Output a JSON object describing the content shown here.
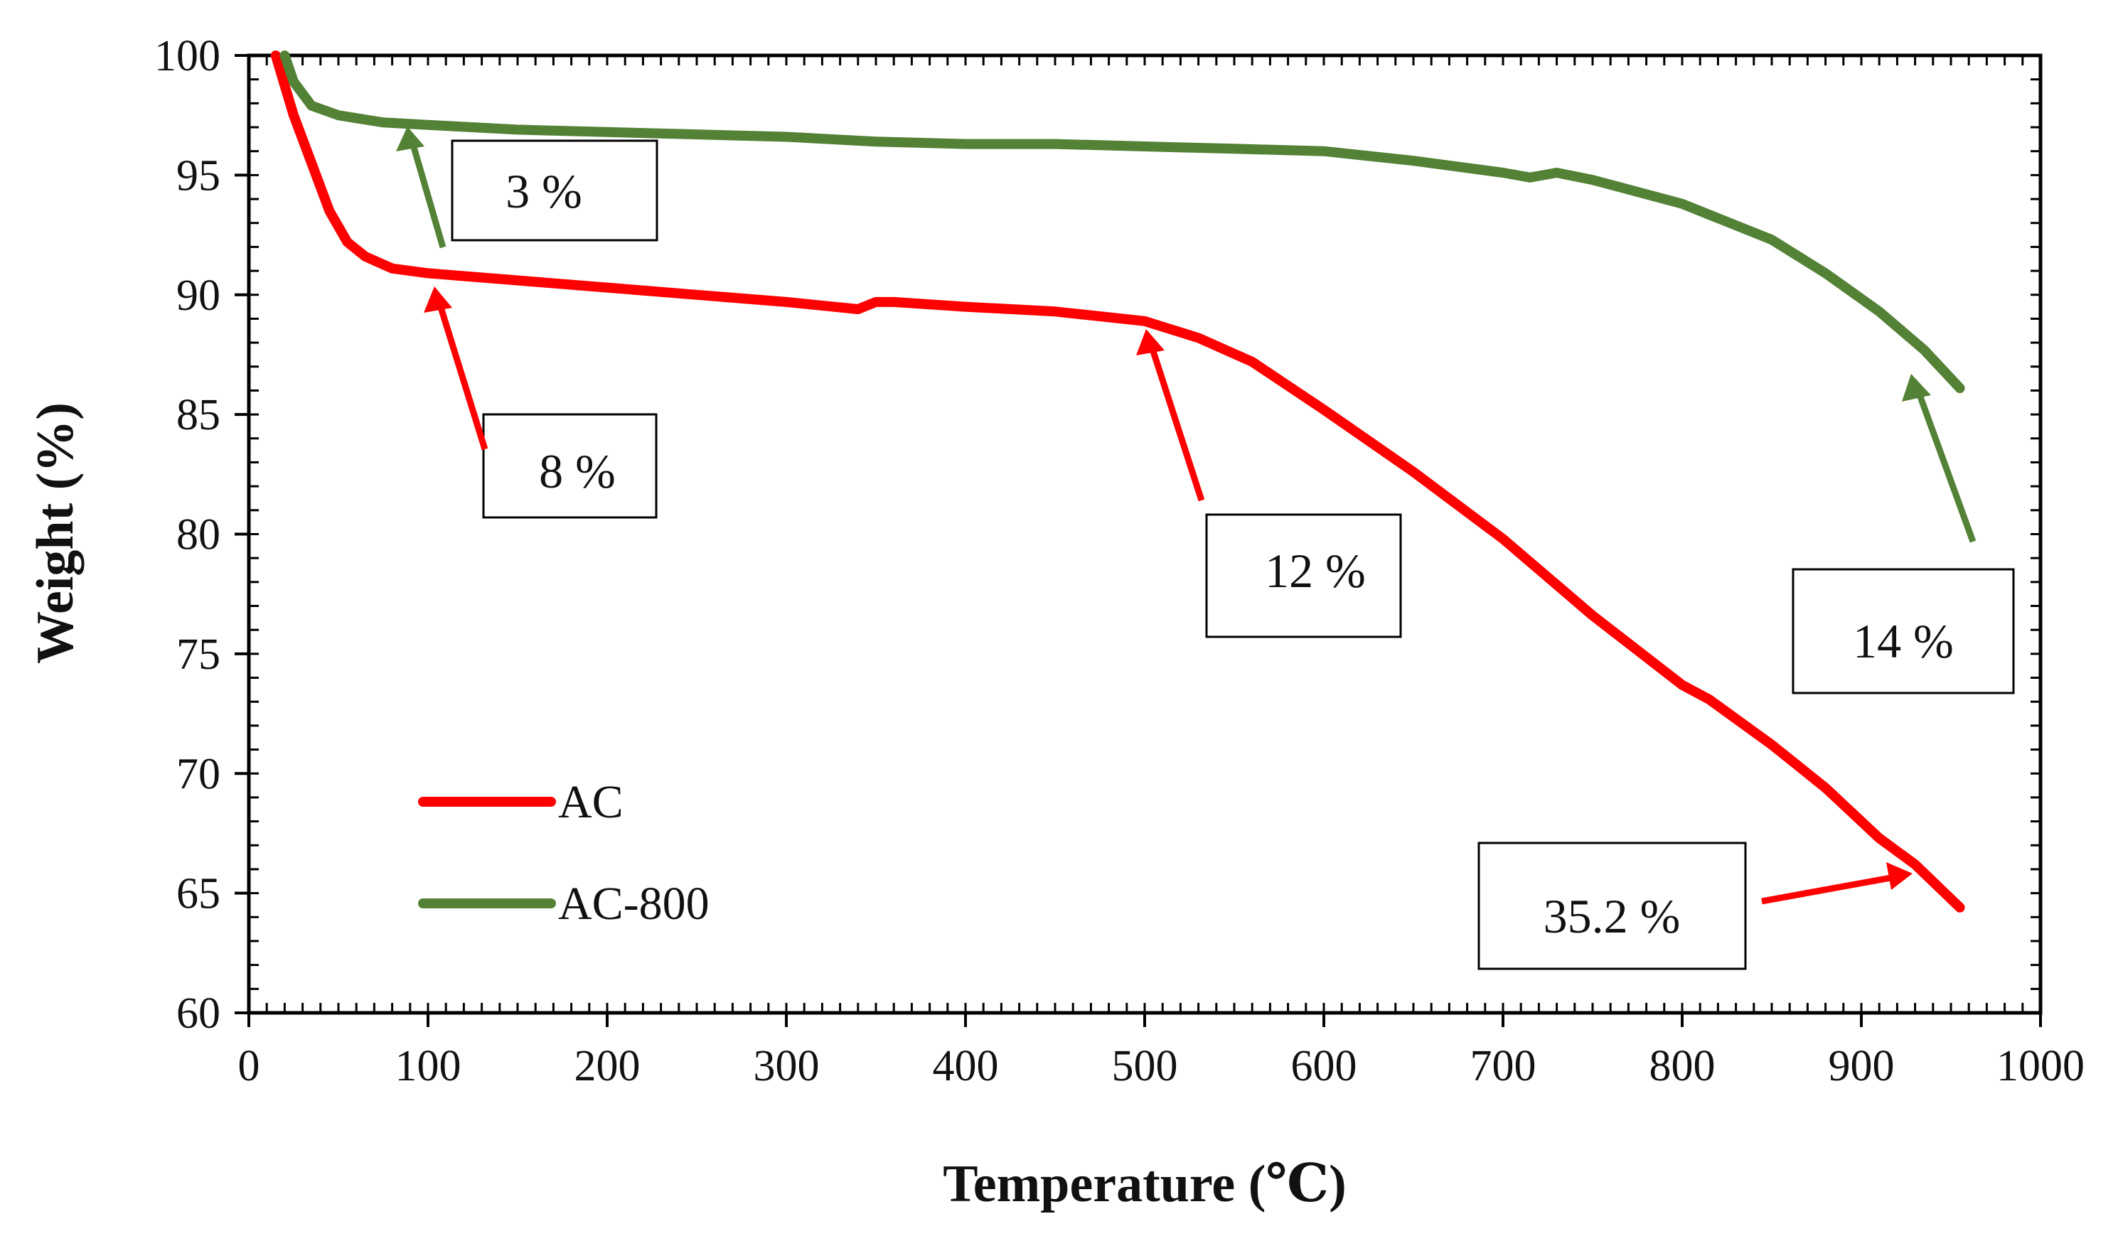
{
  "chart_data": {
    "type": "line",
    "title": "",
    "xlabel": "Temperature (℃)",
    "ylabel": "Weight (%)",
    "xlim": [
      0,
      1000
    ],
    "ylim": [
      60,
      100
    ],
    "x_ticks": [
      0,
      100,
      200,
      300,
      400,
      500,
      600,
      700,
      800,
      900,
      1000
    ],
    "y_ticks": [
      60,
      65,
      70,
      75,
      80,
      85,
      90,
      95,
      100
    ],
    "grid": false,
    "legend_position": "bottom-left",
    "series": [
      {
        "name": "AC",
        "color": "#ff0000",
        "x": [
          15,
          25,
          35,
          45,
          55,
          65,
          80,
          100,
          150,
          200,
          250,
          300,
          340,
          350,
          360,
          400,
          450,
          500,
          530,
          560,
          600,
          650,
          700,
          750,
          800,
          815,
          850,
          880,
          910,
          930,
          955
        ],
        "y": [
          100,
          97.5,
          95.5,
          93.5,
          92.2,
          91.6,
          91.1,
          90.9,
          90.6,
          90.3,
          90.0,
          89.7,
          89.4,
          89.7,
          89.7,
          89.5,
          89.3,
          88.9,
          88.2,
          87.2,
          85.2,
          82.6,
          79.8,
          76.6,
          73.7,
          73.1,
          71.2,
          69.4,
          67.3,
          66.2,
          64.4
        ]
      },
      {
        "name": "AC-800",
        "color": "#538135",
        "x": [
          20,
          25,
          35,
          50,
          75,
          100,
          150,
          200,
          250,
          300,
          350,
          400,
          450,
          500,
          550,
          600,
          650,
          700,
          715,
          730,
          750,
          800,
          850,
          880,
          910,
          935,
          955
        ],
        "y": [
          100,
          98.9,
          97.9,
          97.5,
          97.2,
          97.1,
          96.9,
          96.8,
          96.7,
          96.6,
          96.4,
          96.3,
          96.3,
          96.2,
          96.1,
          96.0,
          95.6,
          95.1,
          94.9,
          95.1,
          94.8,
          93.8,
          92.3,
          90.9,
          89.3,
          87.7,
          86.1
        ]
      }
    ],
    "annotations": [
      {
        "text": "3 %",
        "series": "AC-800",
        "points_to": [
          90,
          97.1
        ]
      },
      {
        "text": "8 %",
        "series": "AC",
        "points_to": [
          100,
          90.9
        ]
      },
      {
        "text": "12 %",
        "series": "AC",
        "points_to": [
          495,
          88.9
        ]
      },
      {
        "text": "14 %",
        "series": "AC-800",
        "points_to": [
          930,
          87.7
        ]
      },
      {
        "text": "35.2 %",
        "series": "AC",
        "points_to": [
          925,
          66.3
        ]
      }
    ]
  }
}
